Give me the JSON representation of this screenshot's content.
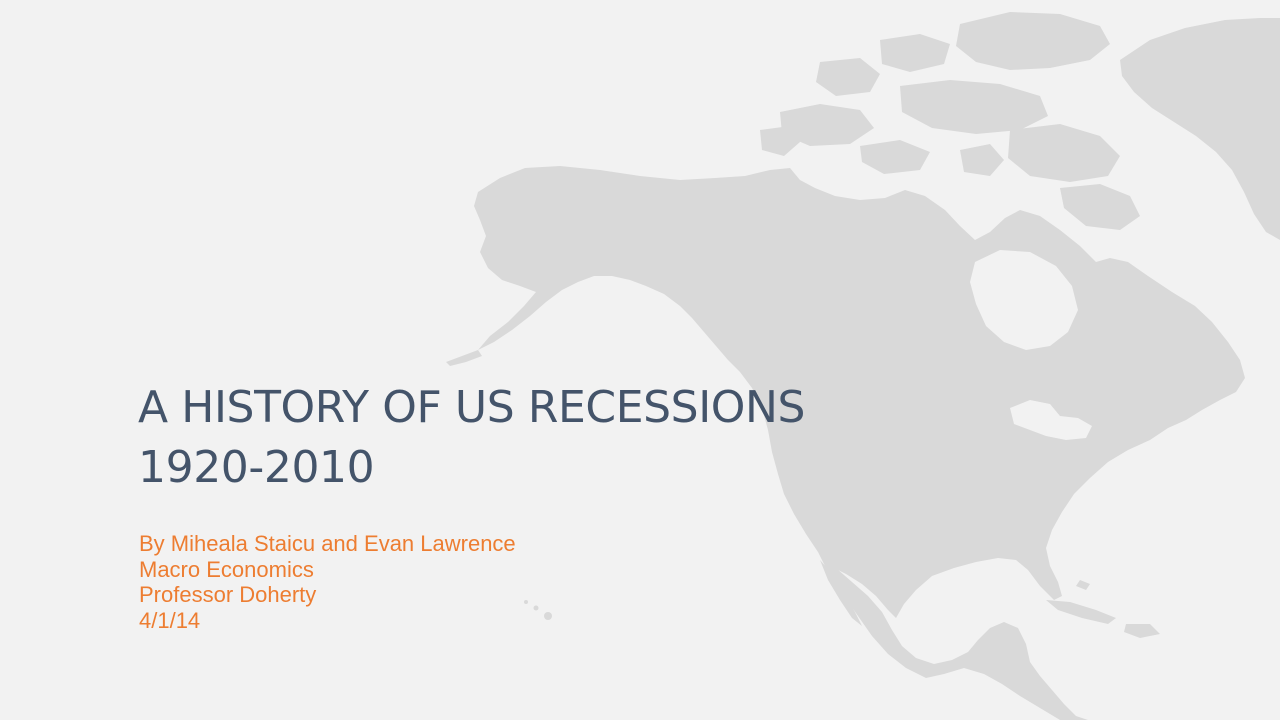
{
  "colors": {
    "background": "#f2f2f2",
    "land": "#d9d9d9",
    "title": "#44546a",
    "subtitle": "#ed7d31"
  },
  "slide": {
    "title_line1": "A HISTORY OF US RECESSIONS",
    "title_line2": "1920-2010",
    "subtitle_lines": [
      "By Miheala Staicu and Evan Lawrence",
      "Macro Economics",
      "Professor Doherty",
      "4/1/14"
    ]
  }
}
